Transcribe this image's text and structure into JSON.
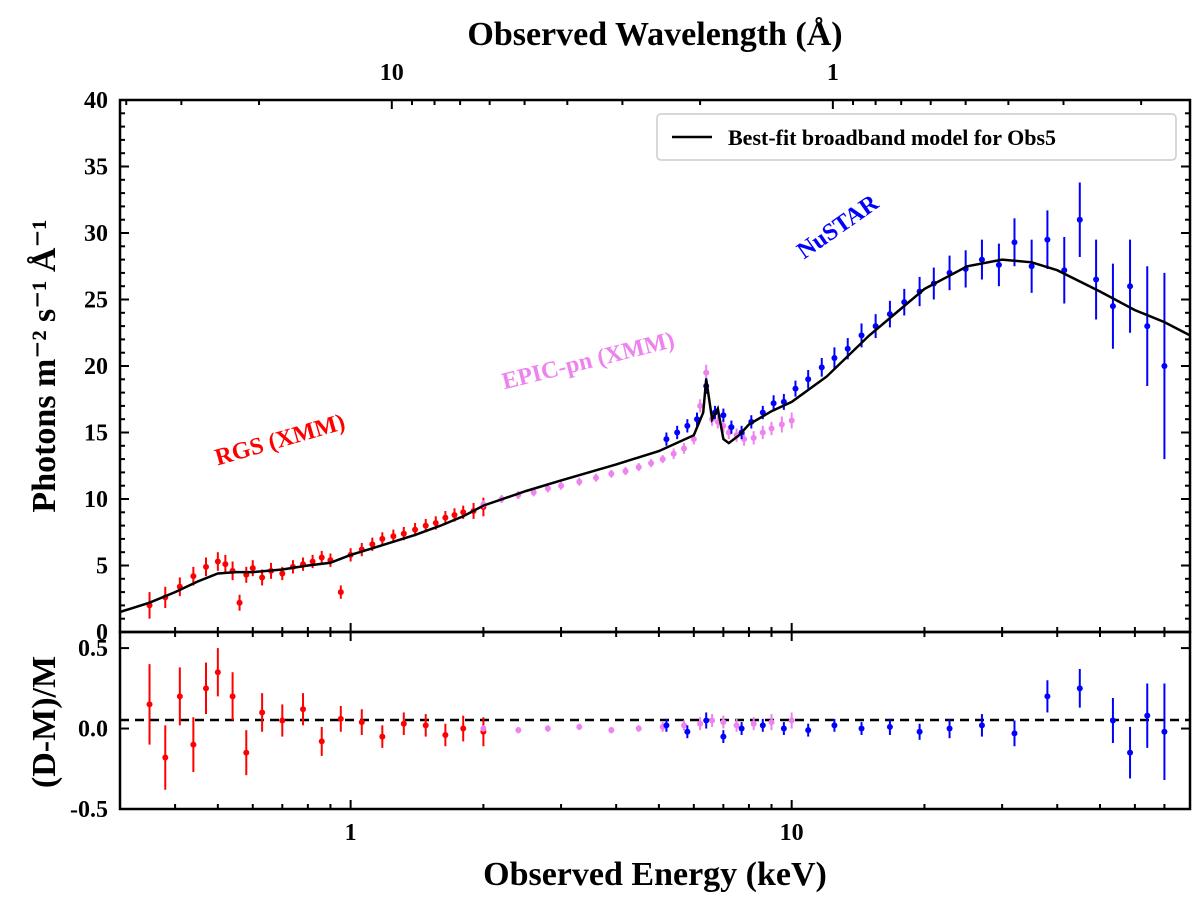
{
  "chart_data": {
    "type": "line",
    "top_axis": {
      "label": "Observed Wavelength (Å)",
      "ticks": [
        10,
        1
      ],
      "scale": "log"
    },
    "main_panel": {
      "ylabel": "Photons m⁻² s⁻¹ Å⁻¹",
      "ylim": [
        0,
        40
      ],
      "yticks": [
        0,
        5,
        10,
        15,
        20,
        25,
        30,
        35,
        40
      ],
      "legend": {
        "label": "Best-fit broadband model for Obs5",
        "placement": "top-right"
      },
      "annotations": [
        {
          "text": "RGS (XMM)",
          "color": "#ff0000"
        },
        {
          "text": "EPIC-pn (XMM)",
          "color": "#ee82ee"
        },
        {
          "text": "NuSTAR",
          "color": "#0000ff"
        }
      ],
      "series": [
        {
          "name": "RGS (XMM)",
          "color": "#ff0000",
          "x": [
            0.35,
            0.38,
            0.41,
            0.44,
            0.47,
            0.5,
            0.52,
            0.54,
            0.56,
            0.58,
            0.6,
            0.63,
            0.66,
            0.7,
            0.74,
            0.78,
            0.82,
            0.86,
            0.9,
            0.95,
            1.0,
            1.06,
            1.12,
            1.18,
            1.25,
            1.32,
            1.4,
            1.48,
            1.56,
            1.64,
            1.72,
            1.8,
            1.9,
            2.0
          ],
          "y": [
            2.0,
            2.6,
            3.4,
            4.2,
            4.9,
            5.3,
            5.1,
            4.6,
            2.2,
            4.3,
            4.8,
            4.1,
            4.6,
            4.4,
            4.9,
            5.1,
            5.3,
            5.6,
            5.4,
            3.0,
            5.8,
            6.2,
            6.6,
            7.0,
            7.2,
            7.4,
            7.7,
            8.0,
            8.2,
            8.6,
            8.8,
            9.0,
            9.1,
            9.4
          ],
          "err": [
            1.0,
            0.8,
            0.7,
            0.7,
            0.7,
            0.7,
            0.7,
            0.7,
            0.6,
            0.6,
            0.6,
            0.6,
            0.6,
            0.5,
            0.5,
            0.5,
            0.5,
            0.5,
            0.5,
            0.5,
            0.5,
            0.5,
            0.5,
            0.5,
            0.5,
            0.5,
            0.5,
            0.5,
            0.5,
            0.5,
            0.5,
            0.5,
            0.6,
            0.7
          ]
        },
        {
          "name": "EPIC-pn (XMM)",
          "color": "#ee82ee",
          "x": [
            2.0,
            2.2,
            2.4,
            2.6,
            2.8,
            3.0,
            3.3,
            3.6,
            3.9,
            4.2,
            4.5,
            4.8,
            5.1,
            5.4,
            5.7,
            6.0,
            6.2,
            6.4,
            6.6,
            6.8,
            7.0,
            7.2,
            7.5,
            7.8,
            8.2,
            8.6,
            9.0,
            9.5,
            10.0
          ],
          "y": [
            9.6,
            10.0,
            10.3,
            10.5,
            10.8,
            11.0,
            11.3,
            11.6,
            11.9,
            12.1,
            12.4,
            12.7,
            13.0,
            13.4,
            13.8,
            14.5,
            17.0,
            19.5,
            16.0,
            15.8,
            15.5,
            15.0,
            14.8,
            14.5,
            14.6,
            15.0,
            15.3,
            15.6,
            15.9
          ],
          "err": [
            0.3,
            0.3,
            0.3,
            0.3,
            0.3,
            0.3,
            0.3,
            0.3,
            0.3,
            0.3,
            0.3,
            0.3,
            0.3,
            0.4,
            0.4,
            0.4,
            0.5,
            0.6,
            0.5,
            0.5,
            0.5,
            0.5,
            0.5,
            0.5,
            0.5,
            0.5,
            0.5,
            0.6,
            0.6
          ]
        },
        {
          "name": "NuSTAR",
          "color": "#0000ff",
          "x": [
            5.2,
            5.5,
            5.8,
            6.1,
            6.4,
            6.7,
            7.0,
            7.3,
            7.7,
            8.1,
            8.6,
            9.1,
            9.6,
            10.2,
            10.9,
            11.7,
            12.5,
            13.4,
            14.4,
            15.5,
            16.7,
            18.0,
            19.5,
            21.0,
            22.8,
            24.8,
            27.0,
            29.5,
            32.0,
            35.0,
            38.0,
            41.5,
            45.0,
            49.0,
            53.5,
            58.5,
            64.0,
            70.0
          ],
          "y": [
            14.5,
            15.0,
            15.5,
            16.0,
            18.5,
            16.5,
            16.3,
            15.4,
            15.0,
            15.8,
            16.5,
            17.2,
            17.3,
            18.3,
            19.0,
            19.9,
            20.6,
            21.3,
            22.3,
            23.0,
            23.9,
            24.8,
            25.6,
            26.2,
            27.0,
            27.3,
            28.0,
            27.6,
            29.3,
            27.5,
            29.5,
            27.2,
            31.0,
            26.5,
            24.5,
            26.0,
            23.0,
            20.0
          ],
          "err": [
            0.5,
            0.5,
            0.5,
            0.5,
            0.6,
            0.5,
            0.5,
            0.5,
            0.5,
            0.5,
            0.5,
            0.6,
            0.6,
            0.6,
            0.7,
            0.7,
            0.8,
            0.8,
            0.9,
            0.9,
            1.0,
            1.0,
            1.1,
            1.2,
            1.3,
            1.4,
            1.5,
            1.6,
            1.8,
            2.0,
            2.2,
            2.5,
            2.8,
            3.0,
            3.2,
            3.5,
            4.5,
            7.0
          ]
        },
        {
          "name": "Best-fit broadband model for Obs5",
          "color": "#000000",
          "x": [
            0.3,
            0.35,
            0.4,
            0.45,
            0.5,
            0.55,
            0.6,
            0.7,
            0.8,
            0.9,
            1.0,
            1.2,
            1.4,
            1.6,
            1.8,
            2.0,
            2.5,
            3.0,
            4.0,
            5.0,
            6.0,
            6.3,
            6.4,
            6.6,
            6.8,
            7.0,
            7.2,
            7.6,
            8.0,
            9.0,
            10.0,
            12.0,
            15.0,
            20.0,
            25.0,
            30.0,
            35.0,
            40.0,
            50.0,
            60.0,
            70.0,
            80.0
          ],
          "y": [
            1.5,
            2.2,
            3.0,
            3.8,
            4.4,
            4.5,
            4.5,
            4.7,
            5.0,
            5.2,
            5.8,
            6.6,
            7.3,
            8.0,
            8.7,
            9.5,
            10.6,
            11.4,
            12.6,
            13.6,
            14.8,
            16.5,
            19.0,
            16.0,
            16.8,
            14.5,
            14.2,
            14.8,
            15.6,
            16.6,
            17.3,
            19.2,
            22.3,
            25.8,
            27.5,
            28.0,
            27.8,
            27.2,
            25.6,
            24.2,
            23.3,
            22.3
          ]
        }
      ]
    },
    "residual_panel": {
      "ylabel": "(D-M)/M",
      "ylim": [
        -0.5,
        0.6
      ],
      "yticks": [
        -0.5,
        0.0,
        0.5
      ],
      "reference_line": 0.0,
      "series": [
        {
          "name": "RGS (XMM)",
          "color": "#ff0000",
          "x": [
            0.35,
            0.38,
            0.41,
            0.44,
            0.47,
            0.5,
            0.54,
            0.58,
            0.63,
            0.7,
            0.78,
            0.86,
            0.95,
            1.06,
            1.18,
            1.32,
            1.48,
            1.64,
            1.8,
            2.0
          ],
          "y": [
            0.15,
            -0.18,
            0.2,
            -0.1,
            0.25,
            0.35,
            0.2,
            -0.15,
            0.1,
            0.05,
            0.12,
            -0.08,
            0.06,
            0.04,
            -0.05,
            0.03,
            0.02,
            -0.04,
            0.0,
            -0.02
          ],
          "err": [
            0.25,
            0.2,
            0.18,
            0.17,
            0.16,
            0.15,
            0.15,
            0.14,
            0.12,
            0.1,
            0.1,
            0.09,
            0.08,
            0.08,
            0.07,
            0.07,
            0.07,
            0.07,
            0.08,
            0.09
          ]
        },
        {
          "name": "EPIC-pn (XMM)",
          "color": "#ee82ee",
          "x": [
            2.0,
            2.4,
            2.8,
            3.3,
            3.9,
            4.5,
            5.1,
            5.7,
            6.2,
            6.6,
            7.0,
            7.5,
            8.2,
            9.0,
            10.0
          ],
          "y": [
            0.0,
            -0.01,
            0.0,
            0.01,
            -0.01,
            0.0,
            0.01,
            0.02,
            0.03,
            0.05,
            0.04,
            0.02,
            0.03,
            0.04,
            0.05
          ],
          "err": [
            0.02,
            0.02,
            0.02,
            0.02,
            0.02,
            0.02,
            0.03,
            0.03,
            0.04,
            0.04,
            0.04,
            0.04,
            0.04,
            0.05,
            0.05
          ]
        },
        {
          "name": "NuSTAR",
          "color": "#0000ff",
          "x": [
            5.2,
            5.8,
            6.4,
            7.0,
            7.7,
            8.6,
            9.6,
            10.9,
            12.5,
            14.4,
            16.7,
            19.5,
            22.8,
            27.0,
            32.0,
            38.0,
            45.0,
            53.5,
            58.5,
            64.0,
            70.0
          ],
          "y": [
            0.02,
            -0.02,
            0.05,
            -0.05,
            0.0,
            0.02,
            0.0,
            -0.01,
            0.02,
            0.0,
            0.01,
            -0.02,
            0.0,
            0.02,
            -0.03,
            0.2,
            0.25,
            0.05,
            -0.15,
            0.08,
            -0.02
          ],
          "err": [
            0.04,
            0.04,
            0.05,
            0.04,
            0.04,
            0.04,
            0.04,
            0.04,
            0.04,
            0.04,
            0.05,
            0.05,
            0.06,
            0.07,
            0.08,
            0.1,
            0.12,
            0.14,
            0.16,
            0.2,
            0.3
          ]
        }
      ]
    },
    "xlabel": "Observed Energy (keV)",
    "xscale": "log",
    "xlim": [
      0.3,
      80
    ],
    "xticks": [
      1,
      10
    ]
  }
}
